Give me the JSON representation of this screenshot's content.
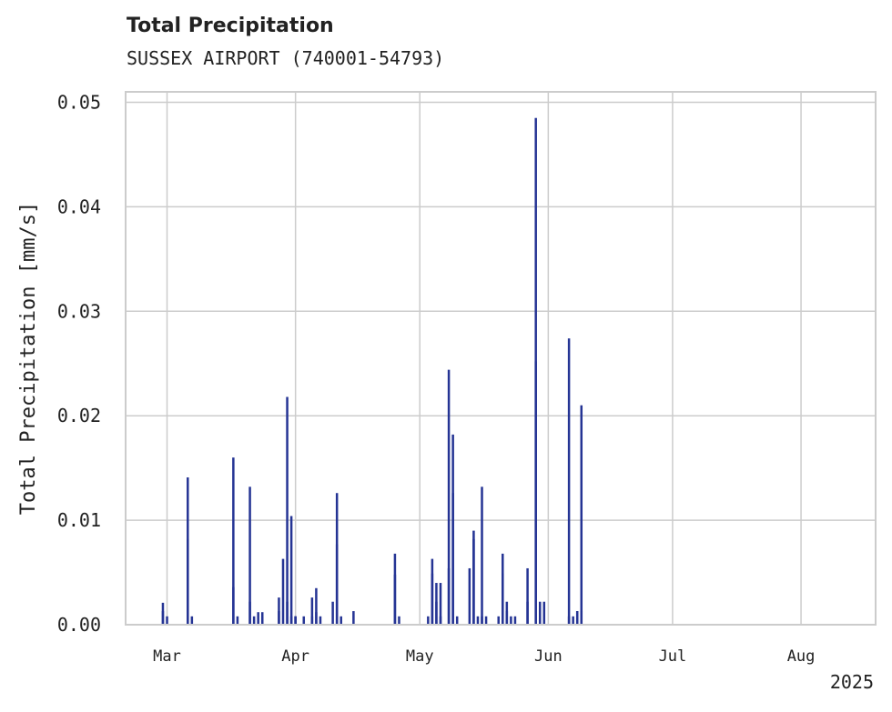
{
  "chart_data": {
    "type": "bar",
    "title": "Total Precipitation",
    "subtitle": "SUSSEX AIRPORT (740001-54793)",
    "ylabel": "Total Precipitation [mm/s]",
    "xlabel": "",
    "xlim": [
      "2025-02-19",
      "2025-08-19"
    ],
    "ylim": [
      0,
      0.051
    ],
    "yticks": [
      0.0,
      0.01,
      0.02,
      0.03,
      0.04,
      0.05
    ],
    "ytick_labels": [
      "0.00",
      "0.01",
      "0.02",
      "0.03",
      "0.04",
      "0.05"
    ],
    "xticks": [
      "2025-03-01",
      "2025-04-01",
      "2025-05-01",
      "2025-06-01",
      "2025-07-01",
      "2025-08-01"
    ],
    "xtick_labels": [
      "Mar",
      "Apr",
      "May",
      "Jun",
      "Jul",
      "Aug"
    ],
    "year_label": "2025",
    "grid": true,
    "bar_color": "#253494",
    "series": [
      {
        "x": [
          "2025-02-28",
          "2025-02-28",
          "2025-03-01",
          "2025-03-06",
          "2025-03-06",
          "2025-03-07",
          "2025-03-17",
          "2025-03-17",
          "2025-03-18",
          "2025-03-21",
          "2025-03-21",
          "2025-03-22",
          "2025-03-23",
          "2025-03-24",
          "2025-03-24",
          "2025-03-28",
          "2025-03-28",
          "2025-03-29",
          "2025-03-30",
          "2025-03-30",
          "2025-03-31",
          "2025-03-31",
          "2025-04-01",
          "2025-04-01",
          "2025-04-01",
          "2025-04-03",
          "2025-04-05",
          "2025-04-05",
          "2025-04-06",
          "2025-04-06",
          "2025-04-07",
          "2025-04-10",
          "2025-04-11",
          "2025-04-11",
          "2025-04-12",
          "2025-04-15",
          "2025-04-25",
          "2025-04-25",
          "2025-04-26",
          "2025-05-03",
          "2025-05-04",
          "2025-05-04",
          "2025-05-05",
          "2025-05-05",
          "2025-05-06",
          "2025-05-06",
          "2025-05-08",
          "2025-05-08",
          "2025-05-09",
          "2025-05-09",
          "2025-05-10",
          "2025-05-13",
          "2025-05-14",
          "2025-05-14",
          "2025-05-15",
          "2025-05-16",
          "2025-05-16",
          "2025-05-17",
          "2025-05-20",
          "2025-05-21",
          "2025-05-21",
          "2025-05-22",
          "2025-05-22",
          "2025-05-23",
          "2025-05-24",
          "2025-05-27",
          "2025-05-27",
          "2025-05-29",
          "2025-05-29",
          "2025-05-30",
          "2025-05-31",
          "2025-06-06",
          "2025-06-06",
          "2025-06-07",
          "2025-06-08",
          "2025-06-08",
          "2025-06-09",
          "2025-06-09"
        ],
        "values": [
          0.0013,
          0.0021,
          0.0008,
          0.0082,
          0.0141,
          0.0008,
          0.016,
          0.0036,
          0.0008,
          0.0022,
          0.0132,
          0.0008,
          0.0012,
          0.0012,
          0.0008,
          0.0013,
          0.0026,
          0.0063,
          0.0022,
          0.0218,
          0.0104,
          0.0008,
          0.0008,
          0.0008,
          0.0008,
          0.0008,
          0.0026,
          0.0008,
          0.0012,
          0.0035,
          0.0008,
          0.0022,
          0.0126,
          0.0077,
          0.0008,
          0.0013,
          0.0048,
          0.0068,
          0.0008,
          0.0008,
          0.0049,
          0.0063,
          0.0022,
          0.004,
          0.004,
          0.0008,
          0.0054,
          0.0244,
          0.0126,
          0.0182,
          0.0008,
          0.0054,
          0.0082,
          0.009,
          0.0008,
          0.0132,
          0.0008,
          0.0008,
          0.0008,
          0.0049,
          0.0068,
          0.0022,
          0.0013,
          0.0008,
          0.0008,
          0.0054,
          0.0022,
          0.0252,
          0.0485,
          0.0022,
          0.0022,
          0.0008,
          0.0274,
          0.0008,
          0.0013,
          0.0013,
          0.021,
          0.0013
        ]
      }
    ]
  }
}
